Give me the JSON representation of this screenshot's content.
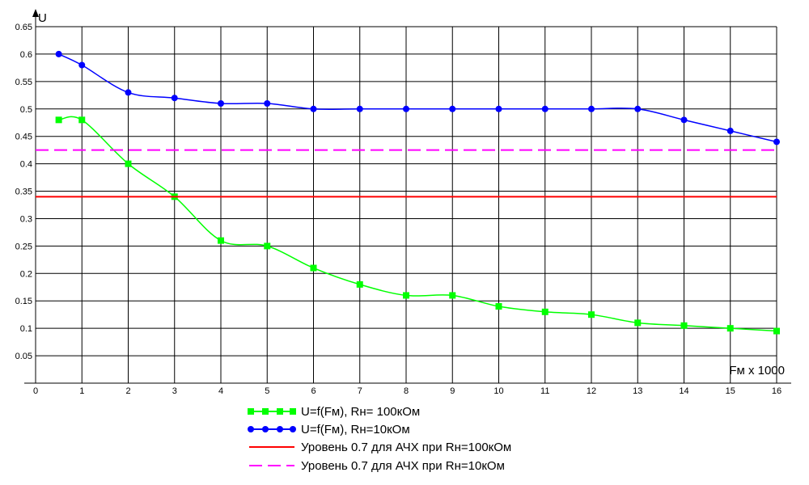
{
  "chart_data": {
    "type": "line",
    "ylabel": "U",
    "xlabel": "Fм x 1000",
    "xlim": [
      0,
      16
    ],
    "ylim": [
      0,
      0.65
    ],
    "x_ticks": [
      "0",
      "1",
      "2",
      "3",
      "4",
      "5",
      "6",
      "7",
      "8",
      "9",
      "10",
      "11",
      "12",
      "13",
      "14",
      "15",
      "16"
    ],
    "y_ticks": [
      "0.05",
      "0.1",
      "0.15",
      "0.2",
      "0.25",
      "0.3",
      "0.35",
      "0.4",
      "0.45",
      "0.5",
      "0.55",
      "0.6",
      "0.65"
    ],
    "grid": true,
    "series": [
      {
        "name": "U=f(Fм), Rн= 100кОм",
        "color": "#00ff00",
        "marker": "square",
        "x": [
          0.5,
          1,
          2,
          3,
          4,
          5,
          6,
          7,
          8,
          9,
          10,
          11,
          12,
          13,
          14,
          15,
          16
        ],
        "y": [
          0.48,
          0.48,
          0.4,
          0.34,
          0.26,
          0.25,
          0.21,
          0.18,
          0.16,
          0.16,
          0.14,
          0.13,
          0.125,
          0.11,
          0.105,
          0.1,
          0.095
        ]
      },
      {
        "name": "U=f(Fм), Rн=10кОм",
        "color": "#0000ff",
        "marker": "circle",
        "x": [
          0.5,
          1,
          2,
          3,
          4,
          5,
          6,
          7,
          8,
          9,
          10,
          11,
          12,
          13,
          14,
          15,
          16
        ],
        "y": [
          0.6,
          0.58,
          0.53,
          0.52,
          0.51,
          0.51,
          0.5,
          0.5,
          0.5,
          0.5,
          0.5,
          0.5,
          0.5,
          0.5,
          0.48,
          0.46,
          0.44
        ]
      },
      {
        "name": "Уровень 0.7 для АЧХ при Rн=100кОм",
        "color": "#ff0000",
        "style": "solid",
        "level": 0.34
      },
      {
        "name": "Уровень 0.7 для АЧХ при Rн=10кОм",
        "color": "#ff00ff",
        "style": "dashed",
        "level": 0.425
      }
    ],
    "legend_position": "bottom-center"
  }
}
